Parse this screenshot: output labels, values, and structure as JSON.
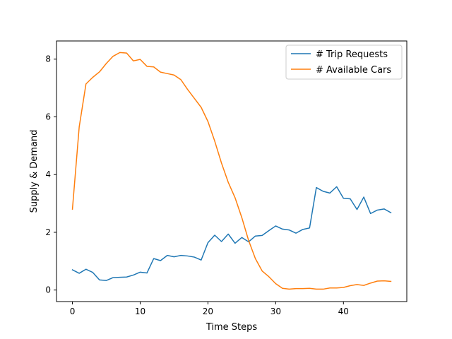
{
  "chart_data": {
    "type": "line",
    "xlabel": "Time Steps",
    "ylabel": "Supply & Demand",
    "xlim": [
      -2.35,
      49.35
    ],
    "ylim": [
      -0.4,
      8.63
    ],
    "xticks": [
      0,
      10,
      20,
      30,
      40
    ],
    "yticks": [
      0,
      2,
      4,
      6,
      8
    ],
    "grid": false,
    "legend_position": "top-right",
    "x": [
      0,
      1,
      2,
      3,
      4,
      5,
      6,
      7,
      8,
      9,
      10,
      11,
      12,
      13,
      14,
      15,
      16,
      17,
      18,
      19,
      20,
      21,
      22,
      23,
      24,
      25,
      26,
      27,
      28,
      29,
      30,
      31,
      32,
      33,
      34,
      35,
      36,
      37,
      38,
      39,
      40,
      41,
      42,
      43,
      44,
      45,
      46,
      47
    ],
    "series": [
      {
        "name": "# Trip Requests",
        "color": "#1f77b4",
        "values": [
          0.7,
          0.58,
          0.72,
          0.61,
          0.35,
          0.33,
          0.43,
          0.44,
          0.45,
          0.52,
          0.62,
          0.59,
          1.09,
          1.02,
          1.2,
          1.15,
          1.2,
          1.18,
          1.14,
          1.04,
          1.64,
          1.9,
          1.68,
          1.94,
          1.62,
          1.82,
          1.67,
          1.87,
          1.89,
          2.06,
          2.22,
          2.11,
          2.08,
          1.97,
          2.1,
          2.15,
          3.55,
          3.42,
          3.36,
          3.58,
          3.18,
          3.16,
          2.79,
          3.22,
          2.65,
          2.77,
          2.81,
          2.68
        ]
      },
      {
        "name": "# Available Cars",
        "color": "#ff7f0e",
        "values": [
          2.8,
          5.65,
          7.14,
          7.37,
          7.56,
          7.85,
          8.1,
          8.23,
          8.21,
          7.94,
          7.99,
          7.75,
          7.73,
          7.55,
          7.5,
          7.45,
          7.29,
          6.95,
          6.64,
          6.33,
          5.84,
          5.16,
          4.4,
          3.73,
          3.2,
          2.51,
          1.72,
          1.09,
          0.66,
          0.46,
          0.22,
          0.06,
          0.03,
          0.05,
          0.05,
          0.06,
          0.03,
          0.03,
          0.07,
          0.07,
          0.09,
          0.15,
          0.19,
          0.16,
          0.24,
          0.31,
          0.32,
          0.3
        ]
      }
    ]
  }
}
